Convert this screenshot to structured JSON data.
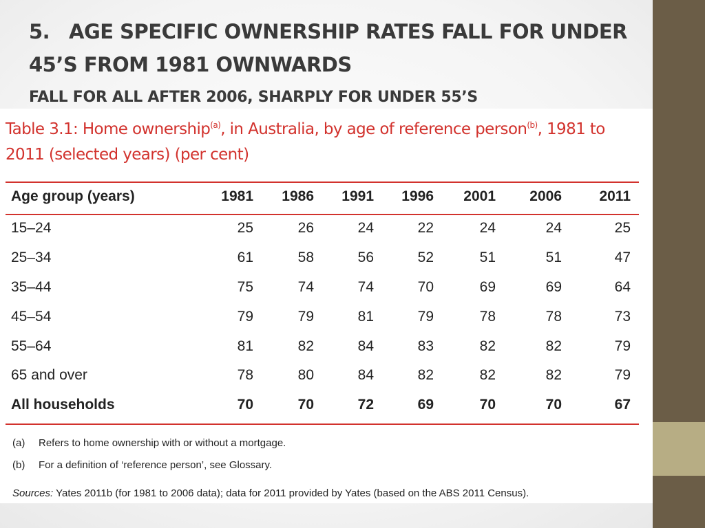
{
  "slide": {
    "number": "5.",
    "title_line1": "AGE SPECIFIC OWNERSHIP RATES FALL FOR UNDER",
    "title_line2": "45’S FROM 1981 OWNWARDS",
    "subtitle": "FALL FOR ALL  AFTER 2006, SHARPLY FOR UNDER 55’S"
  },
  "table": {
    "caption_part1": "Table 3.1: Home ownership",
    "caption_sup_a": "(a)",
    "caption_part2": ", in Australia, by age of reference person",
    "caption_sup_b": "(b)",
    "caption_part3": ", 1981 to 2011 (selected years) (per cent)",
    "header": [
      "Age group (years)",
      "1981",
      "1986",
      "1991",
      "1996",
      "2001",
      "2006",
      "2011"
    ],
    "rows": [
      [
        "15–24",
        "25",
        "26",
        "24",
        "22",
        "24",
        "24",
        "25"
      ],
      [
        "25–34",
        "61",
        "58",
        "56",
        "52",
        "51",
        "51",
        "47"
      ],
      [
        "35–44",
        "75",
        "74",
        "74",
        "70",
        "69",
        "69",
        "64"
      ],
      [
        "45–54",
        "79",
        "79",
        "81",
        "79",
        "78",
        "78",
        "73"
      ],
      [
        "55–64",
        "81",
        "82",
        "84",
        "83",
        "82",
        "82",
        "79"
      ],
      [
        "65 and over",
        "78",
        "80",
        "84",
        "82",
        "82",
        "82",
        "79"
      ],
      [
        "All households",
        "70",
        "70",
        "72",
        "69",
        "70",
        "70",
        "67"
      ]
    ],
    "notes": [
      {
        "key": "(a)",
        "text": "Refers to home ownership with or without a mortgage."
      },
      {
        "key": "(b)",
        "text": "For a definition of ‘reference person’, see Glossary."
      }
    ],
    "sources_label": "Sources:",
    "sources_text": " Yates 2011b (for 1981 to 2006 data); data for 2011 provided by Yates (based on the ABS 2011 Census)."
  },
  "colors": {
    "sidebar": "#6b5d47",
    "sidebar_accent": "#b7ad84",
    "caption_red": "#d2322d",
    "title_text": "#3a3a3a"
  }
}
